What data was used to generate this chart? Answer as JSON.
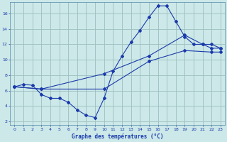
{
  "background_color": "#cce8e8",
  "grid_color": "#9bbfbf",
  "line_color": "#1a3aab",
  "xlabel": "Graphe des températures (°C)",
  "xlim": [
    -0.5,
    23.5
  ],
  "ylim": [
    1.5,
    17.5
  ],
  "yticks": [
    2,
    4,
    6,
    8,
    10,
    12,
    14,
    16
  ],
  "xticks": [
    0,
    1,
    2,
    3,
    4,
    5,
    6,
    7,
    8,
    9,
    10,
    11,
    12,
    13,
    14,
    15,
    16,
    17,
    18,
    19,
    20,
    21,
    22,
    23
  ],
  "line1_x": [
    0,
    1,
    2,
    3,
    4,
    5,
    6,
    7,
    8,
    9,
    10,
    11,
    12,
    13,
    14,
    15,
    16,
    17,
    18,
    19,
    20,
    21,
    22,
    23
  ],
  "line1_y": [
    6.5,
    6.8,
    6.7,
    5.5,
    5.0,
    5.0,
    4.5,
    3.5,
    2.8,
    2.5,
    5.0,
    8.5,
    10.5,
    12.3,
    13.8,
    15.5,
    17.0,
    17.0,
    15.0,
    13.0,
    12.0,
    12.0,
    11.5,
    11.5
  ],
  "line2_x": [
    0,
    3,
    10,
    15,
    19,
    21,
    22,
    23
  ],
  "line2_y": [
    6.5,
    6.2,
    8.2,
    10.5,
    13.2,
    12.0,
    12.0,
    11.5
  ],
  "line3_x": [
    0,
    3,
    10,
    15,
    19,
    22,
    23
  ],
  "line3_y": [
    6.5,
    6.2,
    6.2,
    9.8,
    11.2,
    11.0,
    11.0
  ]
}
